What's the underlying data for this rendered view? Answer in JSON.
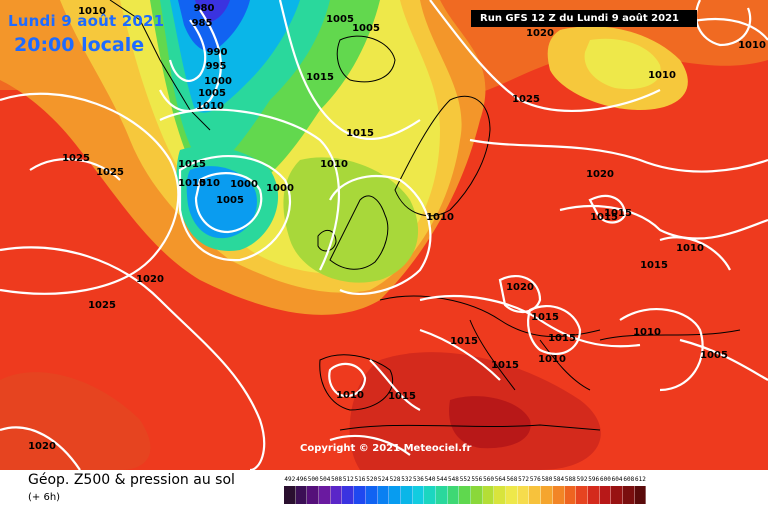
{
  "header": {
    "date_text": "Lundi 9 août 2021",
    "time_text": "20:00 locale",
    "run_text": "Run GFS 12 Z du Lundi 9 août 2021"
  },
  "copyright": "Copyright © 2021 Meteociel.fr",
  "legend": {
    "title": "Géop. Z500 & pression au sol",
    "subtitle": "(+ 6h)",
    "scale_values": [
      "492",
      "496",
      "500",
      "504",
      "508",
      "512",
      "516",
      "520",
      "524",
      "528",
      "532",
      "536",
      "540",
      "544",
      "548",
      "552",
      "556",
      "560",
      "564",
      "568",
      "572",
      "576",
      "580",
      "584",
      "588",
      "592",
      "596",
      "600",
      "604",
      "608",
      "612"
    ],
    "scale_colors": [
      "#2a0f2f",
      "#3b0f55",
      "#55107a",
      "#6a1aa0",
      "#5a26c8",
      "#3a33e0",
      "#1f48f0",
      "#1163f2",
      "#0a80f2",
      "#079cf0",
      "#0ab6e8",
      "#12cce0",
      "#1bd6c0",
      "#2ad89c",
      "#3ed874",
      "#5fd84e",
      "#8ad83a",
      "#b4de36",
      "#d8e43c",
      "#eee84a",
      "#f6dc4c",
      "#f7c23c",
      "#f5a52e",
      "#f28526",
      "#ee6420",
      "#e64420",
      "#d42a1c",
      "#b81818",
      "#981212",
      "#7a0e0e",
      "#5a0a0a"
    ]
  },
  "isobar_labels": [
    {
      "text": "1010"
    },
    {
      "text": "980"
    },
    {
      "text": "985"
    },
    {
      "text": "1005"
    },
    {
      "text": "1005"
    },
    {
      "text": "990"
    },
    {
      "text": "995"
    },
    {
      "text": "1000"
    },
    {
      "text": "1005"
    },
    {
      "text": "1010"
    },
    {
      "text": "1015"
    },
    {
      "text": "1015"
    },
    {
      "text": "1015"
    },
    {
      "text": "1010"
    },
    {
      "text": "1020"
    },
    {
      "text": "1025"
    },
    {
      "text": "1010"
    },
    {
      "text": "1010"
    },
    {
      "text": "1025"
    },
    {
      "text": "1025"
    },
    {
      "text": "1010"
    },
    {
      "text": "1000"
    },
    {
      "text": "1000"
    },
    {
      "text": "1005"
    },
    {
      "text": "1010"
    },
    {
      "text": "1020"
    },
    {
      "text": "1015"
    },
    {
      "text": "1015"
    },
    {
      "text": "1010"
    },
    {
      "text": "1020"
    },
    {
      "text": "1015"
    },
    {
      "text": "1010"
    },
    {
      "text": "1020"
    },
    {
      "text": "1025"
    },
    {
      "text": "1015"
    },
    {
      "text": "1015"
    },
    {
      "text": "1015"
    },
    {
      "text": "1015"
    },
    {
      "text": "1010"
    },
    {
      "text": "1005"
    },
    {
      "text": "1015"
    },
    {
      "text": "1010"
    },
    {
      "text": "1015"
    },
    {
      "text": "1020"
    }
  ]
}
